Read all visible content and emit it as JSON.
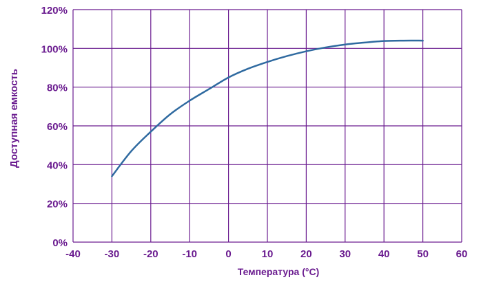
{
  "colors": {
    "grid": "#6a1b8f",
    "tick_text": "#6a1b8f",
    "axis_title_text": "#6a1b8f",
    "line": "#2f6aa0",
    "background": "#ffffff"
  },
  "chart_data": {
    "type": "line",
    "title": "",
    "xlabel": "Температура (°C)",
    "ylabel": "Доступная емкость",
    "xlim": [
      -40,
      60
    ],
    "ylim": [
      0,
      120
    ],
    "grid": true,
    "legend": "none",
    "x_ticks": [
      -40,
      -30,
      -20,
      -10,
      0,
      10,
      20,
      30,
      40,
      50,
      60
    ],
    "x_tick_labels": [
      "-40",
      "-30",
      "-20",
      "-10",
      "0",
      "10",
      "20",
      "30",
      "40",
      "50",
      "60"
    ],
    "y_ticks": [
      0,
      20,
      40,
      60,
      80,
      100,
      120
    ],
    "y_tick_labels": [
      "0%",
      "20%",
      "40%",
      "60%",
      "80%",
      "100%",
      "120%"
    ],
    "series": [
      {
        "x": [
          -30,
          -25,
          -20,
          -15,
          -10,
          -5,
          0,
          5,
          10,
          15,
          20,
          25,
          30,
          35,
          40,
          45,
          50
        ],
        "y": [
          34,
          47,
          57,
          66,
          73,
          79,
          85,
          89.5,
          93,
          96,
          98.5,
          100.5,
          102,
          103,
          103.8,
          104,
          104
        ]
      }
    ]
  }
}
